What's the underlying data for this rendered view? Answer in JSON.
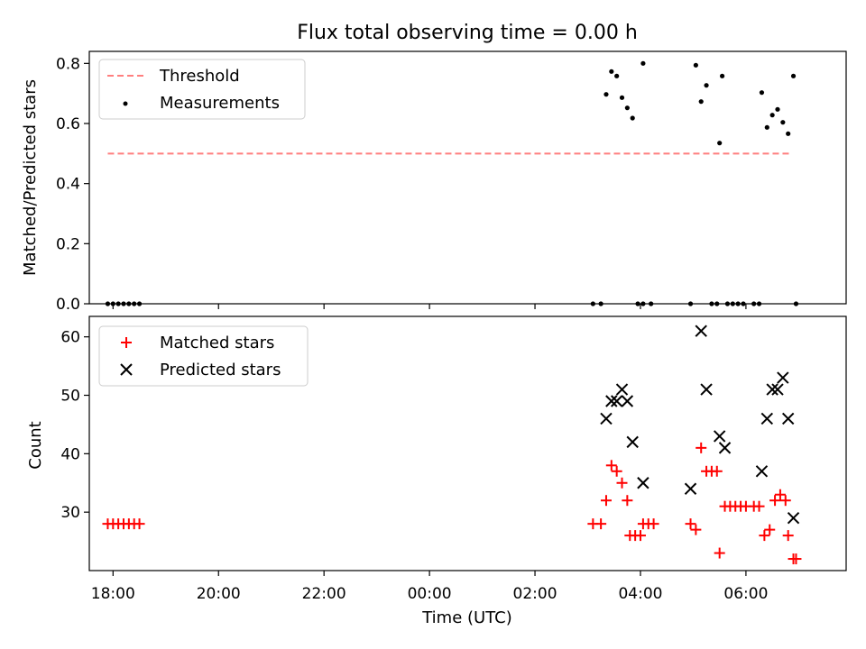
{
  "figure": {
    "title": "Flux total observing time = 0.00 h",
    "xlabel": "Time (UTC)",
    "x_tick_labels": [
      "18:00",
      "20:00",
      "22:00",
      "00:00",
      "02:00",
      "04:00",
      "06:00"
    ]
  },
  "chart_data": [
    {
      "type": "scatter",
      "ylabel": "Matched/Predicted stars",
      "xlim": [
        -0.45,
        13.9
      ],
      "ylim": [
        0.0,
        0.84
      ],
      "y_ticks": [
        0.0,
        0.2,
        0.4,
        0.6,
        0.8
      ],
      "y_tick_labels": [
        "0.0",
        "0.2",
        "0.4",
        "0.6",
        "0.8"
      ],
      "legend_position": "upper-left",
      "threshold": {
        "name": "Threshold",
        "color": "#ff7f7f",
        "value": 0.5,
        "x_range": [
          -0.1,
          12.85
        ]
      },
      "series": [
        {
          "name": "Measurements",
          "color": "#000000",
          "marker": "dot",
          "points": [
            [
              -0.1,
              0.0
            ],
            [
              0.0,
              0.0
            ],
            [
              0.1,
              0.0
            ],
            [
              0.2,
              0.0
            ],
            [
              0.3,
              0.0
            ],
            [
              0.4,
              0.0
            ],
            [
              0.5,
              0.0
            ],
            [
              9.1,
              0.0
            ],
            [
              9.25,
              0.0
            ],
            [
              9.35,
              0.697
            ],
            [
              9.45,
              0.773
            ],
            [
              9.55,
              0.758
            ],
            [
              9.65,
              0.686
            ],
            [
              9.75,
              0.652
            ],
            [
              9.85,
              0.618
            ],
            [
              9.95,
              0.0
            ],
            [
              10.05,
              0.0
            ],
            [
              10.05,
              0.8
            ],
            [
              10.2,
              0.0
            ],
            [
              10.95,
              0.0
            ],
            [
              11.05,
              0.794
            ],
            [
              11.15,
              0.673
            ],
            [
              11.25,
              0.727
            ],
            [
              11.35,
              0.0
            ],
            [
              11.45,
              0.0
            ],
            [
              11.5,
              0.535
            ],
            [
              11.55,
              0.758
            ],
            [
              11.65,
              0.0
            ],
            [
              11.75,
              0.0
            ],
            [
              11.85,
              0.0
            ],
            [
              11.95,
              0.0
            ],
            [
              12.15,
              0.0
            ],
            [
              12.25,
              0.0
            ],
            [
              12.3,
              0.703
            ],
            [
              12.4,
              0.587
            ],
            [
              12.5,
              0.628
            ],
            [
              12.6,
              0.647
            ],
            [
              12.7,
              0.604
            ],
            [
              12.8,
              0.566
            ],
            [
              12.9,
              0.758
            ],
            [
              12.95,
              0.0
            ]
          ]
        }
      ]
    },
    {
      "type": "scatter",
      "ylabel": "Count",
      "xlim": [
        -0.45,
        13.9
      ],
      "ylim": [
        20,
        63.5
      ],
      "y_ticks": [
        30,
        40,
        50,
        60
      ],
      "y_tick_labels": [
        "30",
        "40",
        "50",
        "60"
      ],
      "legend_position": "upper-left",
      "series": [
        {
          "name": "Matched stars",
          "color": "#ff0000",
          "marker": "plus",
          "points": [
            [
              -0.1,
              28
            ],
            [
              0.0,
              28
            ],
            [
              0.1,
              28
            ],
            [
              0.2,
              28
            ],
            [
              0.3,
              28
            ],
            [
              0.4,
              28
            ],
            [
              0.5,
              28
            ],
            [
              9.1,
              28
            ],
            [
              9.25,
              28
            ],
            [
              9.35,
              32
            ],
            [
              9.45,
              38
            ],
            [
              9.55,
              37
            ],
            [
              9.65,
              35
            ],
            [
              9.75,
              32
            ],
            [
              9.8,
              26
            ],
            [
              9.9,
              26
            ],
            [
              10.0,
              26
            ],
            [
              10.05,
              28
            ],
            [
              10.15,
              28
            ],
            [
              10.25,
              28
            ],
            [
              10.95,
              28
            ],
            [
              11.05,
              27
            ],
            [
              11.15,
              41
            ],
            [
              11.25,
              37
            ],
            [
              11.35,
              37
            ],
            [
              11.45,
              37
            ],
            [
              11.5,
              23
            ],
            [
              11.6,
              31
            ],
            [
              11.7,
              31
            ],
            [
              11.8,
              31
            ],
            [
              11.9,
              31
            ],
            [
              12.0,
              31
            ],
            [
              12.15,
              31
            ],
            [
              12.25,
              31
            ],
            [
              12.35,
              26
            ],
            [
              12.45,
              27
            ],
            [
              12.55,
              32
            ],
            [
              12.65,
              33
            ],
            [
              12.75,
              32
            ],
            [
              12.8,
              26
            ],
            [
              12.9,
              22
            ],
            [
              12.95,
              22
            ]
          ]
        },
        {
          "name": "Predicted stars",
          "color": "#000000",
          "marker": "x",
          "points": [
            [
              9.35,
              46
            ],
            [
              9.45,
              49
            ],
            [
              9.55,
              49
            ],
            [
              9.65,
              51
            ],
            [
              9.75,
              49
            ],
            [
              9.85,
              42
            ],
            [
              10.05,
              35
            ],
            [
              10.95,
              34
            ],
            [
              11.15,
              61
            ],
            [
              11.25,
              51
            ],
            [
              11.5,
              43
            ],
            [
              11.6,
              41
            ],
            [
              12.3,
              37
            ],
            [
              12.4,
              46
            ],
            [
              12.5,
              51
            ],
            [
              12.6,
              51
            ],
            [
              12.7,
              53
            ],
            [
              12.8,
              46
            ],
            [
              12.9,
              29
            ]
          ]
        }
      ]
    }
  ]
}
